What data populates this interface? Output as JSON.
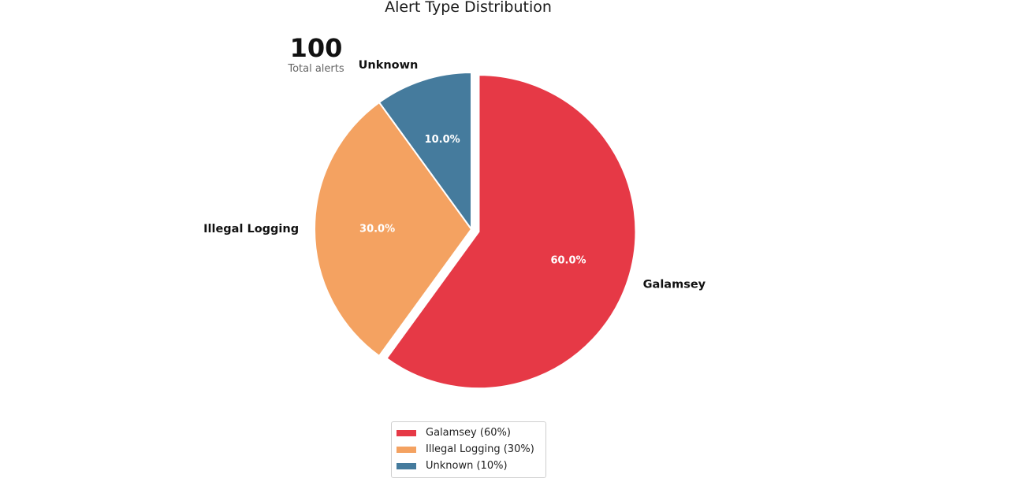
{
  "summary": {
    "total_value": "100",
    "total_label": "Total alerts"
  },
  "chart_data": {
    "type": "pie",
    "title": "Alert Type Distribution",
    "slices": [
      {
        "label": "Galamsey",
        "value": 60,
        "pct_label": "60.0%",
        "legend": "Galamsey (60%)",
        "color": "#e63946",
        "exploded": true
      },
      {
        "label": "Illegal Logging",
        "value": 30,
        "pct_label": "30.0%",
        "legend": "Illegal Logging (30%)",
        "color": "#f4a261",
        "exploded": false
      },
      {
        "label": "Unknown",
        "value": 10,
        "pct_label": "10.0%",
        "legend": "Unknown (10%)",
        "color": "#457b9d",
        "exploded": false
      }
    ],
    "start_angle": "12 o'clock",
    "direction": "clockwise",
    "legend_position": "bottom-center"
  }
}
